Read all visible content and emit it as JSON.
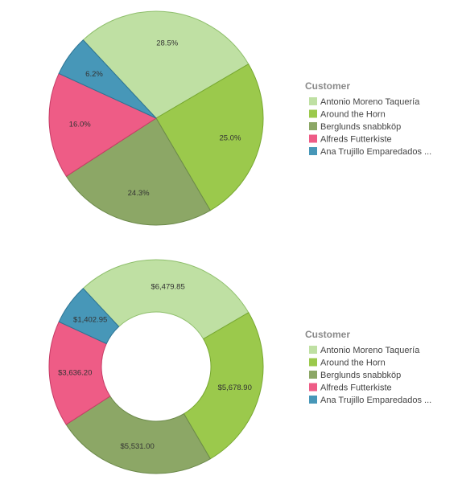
{
  "chart_data": [
    {
      "type": "pie",
      "legend_title": "Customer",
      "legend_position": "right",
      "categories": [
        "Antonio Moreno Taquería",
        "Around the Horn",
        "Berglunds snabbköp",
        "Alfreds Futterkiste",
        "Ana Trujillo Emparedados ..."
      ],
      "values": [
        28.5,
        25.0,
        24.3,
        16.0,
        6.2
      ],
      "data_labels": [
        "28.5%",
        "25.0%",
        "24.3%",
        "16.0%",
        "6.2%"
      ],
      "colors": [
        "#bfe0a3",
        "#9bc94c",
        "#8ca766",
        "#ee5c86",
        "#4797b8"
      ],
      "stroke_colors": [
        "#8fbf6c",
        "#77a830",
        "#6c8a4a",
        "#c63c66",
        "#2d7494"
      ]
    },
    {
      "type": "donut",
      "legend_title": "Customer",
      "legend_position": "right",
      "categories": [
        "Antonio Moreno Taquería",
        "Around the Horn",
        "Berglunds snabbköp",
        "Alfreds Futterkiste",
        "Ana Trujillo Emparedados ..."
      ],
      "values": [
        6479.85,
        5678.9,
        5531.0,
        3636.2,
        1402.95
      ],
      "data_labels": [
        "$6,479.85",
        "$5,678.90",
        "$5,531.00",
        "$3,636.20",
        "$1,402.95"
      ],
      "colors": [
        "#bfe0a3",
        "#9bc94c",
        "#8ca766",
        "#ee5c86",
        "#4797b8"
      ],
      "stroke_colors": [
        "#8fbf6c",
        "#77a830",
        "#6c8a4a",
        "#c63c66",
        "#2d7494"
      ]
    }
  ]
}
